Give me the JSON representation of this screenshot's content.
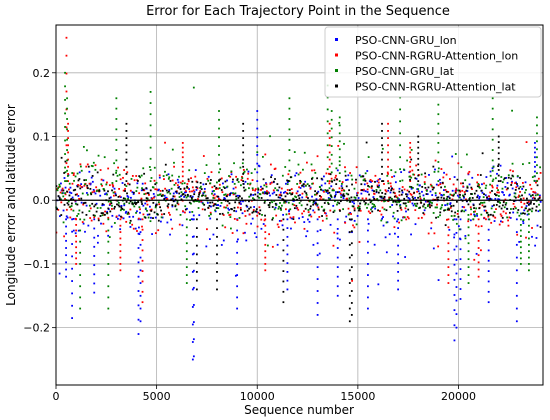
{
  "chart_data": {
    "type": "scatter",
    "title": "Error for Each Trajectory Point in the Sequence",
    "xlabel": "Sequence number",
    "ylabel": "Longitude error and latitude error",
    "xlim": [
      0,
      24200
    ],
    "ylim": [
      -0.29,
      0.275
    ],
    "xticks": [
      0,
      5000,
      10000,
      15000,
      20000
    ],
    "yticks": [
      -0.2,
      -0.1,
      0.0,
      0.1,
      0.2
    ],
    "xtick_labels": [
      "0",
      "5000",
      "10000",
      "15000",
      "20000"
    ],
    "ytick_labels": [
      "−0.2",
      "−0.1",
      "0.0",
      "0.1",
      "0.2"
    ],
    "grid": true,
    "legend_position": "top-right",
    "series": [
      {
        "name": "PSO-CNN-GRU_lon",
        "color": "#0000ff",
        "notable_points": [
          [
            500,
            -0.12
          ],
          [
            800,
            -0.185
          ],
          [
            1900,
            -0.145
          ],
          [
            4100,
            -0.21
          ],
          [
            4200,
            -0.19
          ],
          [
            6800,
            -0.25
          ],
          [
            6850,
            -0.245
          ],
          [
            9000,
            -0.17
          ],
          [
            10000,
            0.14
          ],
          [
            11500,
            -0.14
          ],
          [
            13000,
            -0.18
          ],
          [
            14000,
            -0.15
          ],
          [
            15500,
            -0.17
          ],
          [
            17000,
            -0.14
          ],
          [
            19800,
            -0.22
          ],
          [
            19900,
            -0.2
          ],
          [
            20100,
            -0.155
          ],
          [
            21500,
            -0.16
          ],
          [
            22900,
            -0.19
          ],
          [
            23800,
            0.09
          ]
        ]
      },
      {
        "name": "PSO-CNN-RGRU-Attention_lon",
        "color": "#ff0000",
        "notable_points": [
          [
            520,
            0.255
          ],
          [
            600,
            0.12
          ],
          [
            1000,
            -0.1
          ],
          [
            3200,
            -0.11
          ],
          [
            4300,
            -0.16
          ],
          [
            6300,
            0.09
          ],
          [
            10400,
            -0.11
          ],
          [
            13600,
            0.12
          ],
          [
            16500,
            0.12
          ],
          [
            17600,
            0.09
          ],
          [
            19500,
            -0.13
          ],
          [
            21000,
            -0.12
          ]
        ]
      },
      {
        "name": "PSO-CNN-GRU_lat",
        "color": "#008000",
        "notable_points": [
          [
            450,
            0.2
          ],
          [
            550,
            0.16
          ],
          [
            1200,
            -0.17
          ],
          [
            2600,
            -0.17
          ],
          [
            3000,
            0.16
          ],
          [
            4700,
            0.17
          ],
          [
            6500,
            -0.13
          ],
          [
            8100,
            0.14
          ],
          [
            11600,
            0.16
          ],
          [
            13500,
            0.18
          ],
          [
            13700,
            0.14
          ],
          [
            14100,
            0.13
          ],
          [
            17100,
            0.18
          ],
          [
            19000,
            0.15
          ],
          [
            20500,
            -0.13
          ],
          [
            21700,
            0.16
          ],
          [
            23100,
            -0.1
          ],
          [
            23500,
            -0.11
          ],
          [
            23900,
            0.13
          ]
        ]
      },
      {
        "name": "PSO-CNN-RGRU-Attention_lat",
        "color": "#000000",
        "notable_points": [
          [
            3500,
            0.12
          ],
          [
            7000,
            -0.14
          ],
          [
            8000,
            -0.14
          ],
          [
            9300,
            0.12
          ],
          [
            11300,
            -0.16
          ],
          [
            14600,
            -0.19
          ],
          [
            14700,
            -0.18
          ],
          [
            16200,
            0.12
          ],
          [
            18000,
            0.1
          ],
          [
            22000,
            0.1
          ]
        ]
      }
    ]
  }
}
